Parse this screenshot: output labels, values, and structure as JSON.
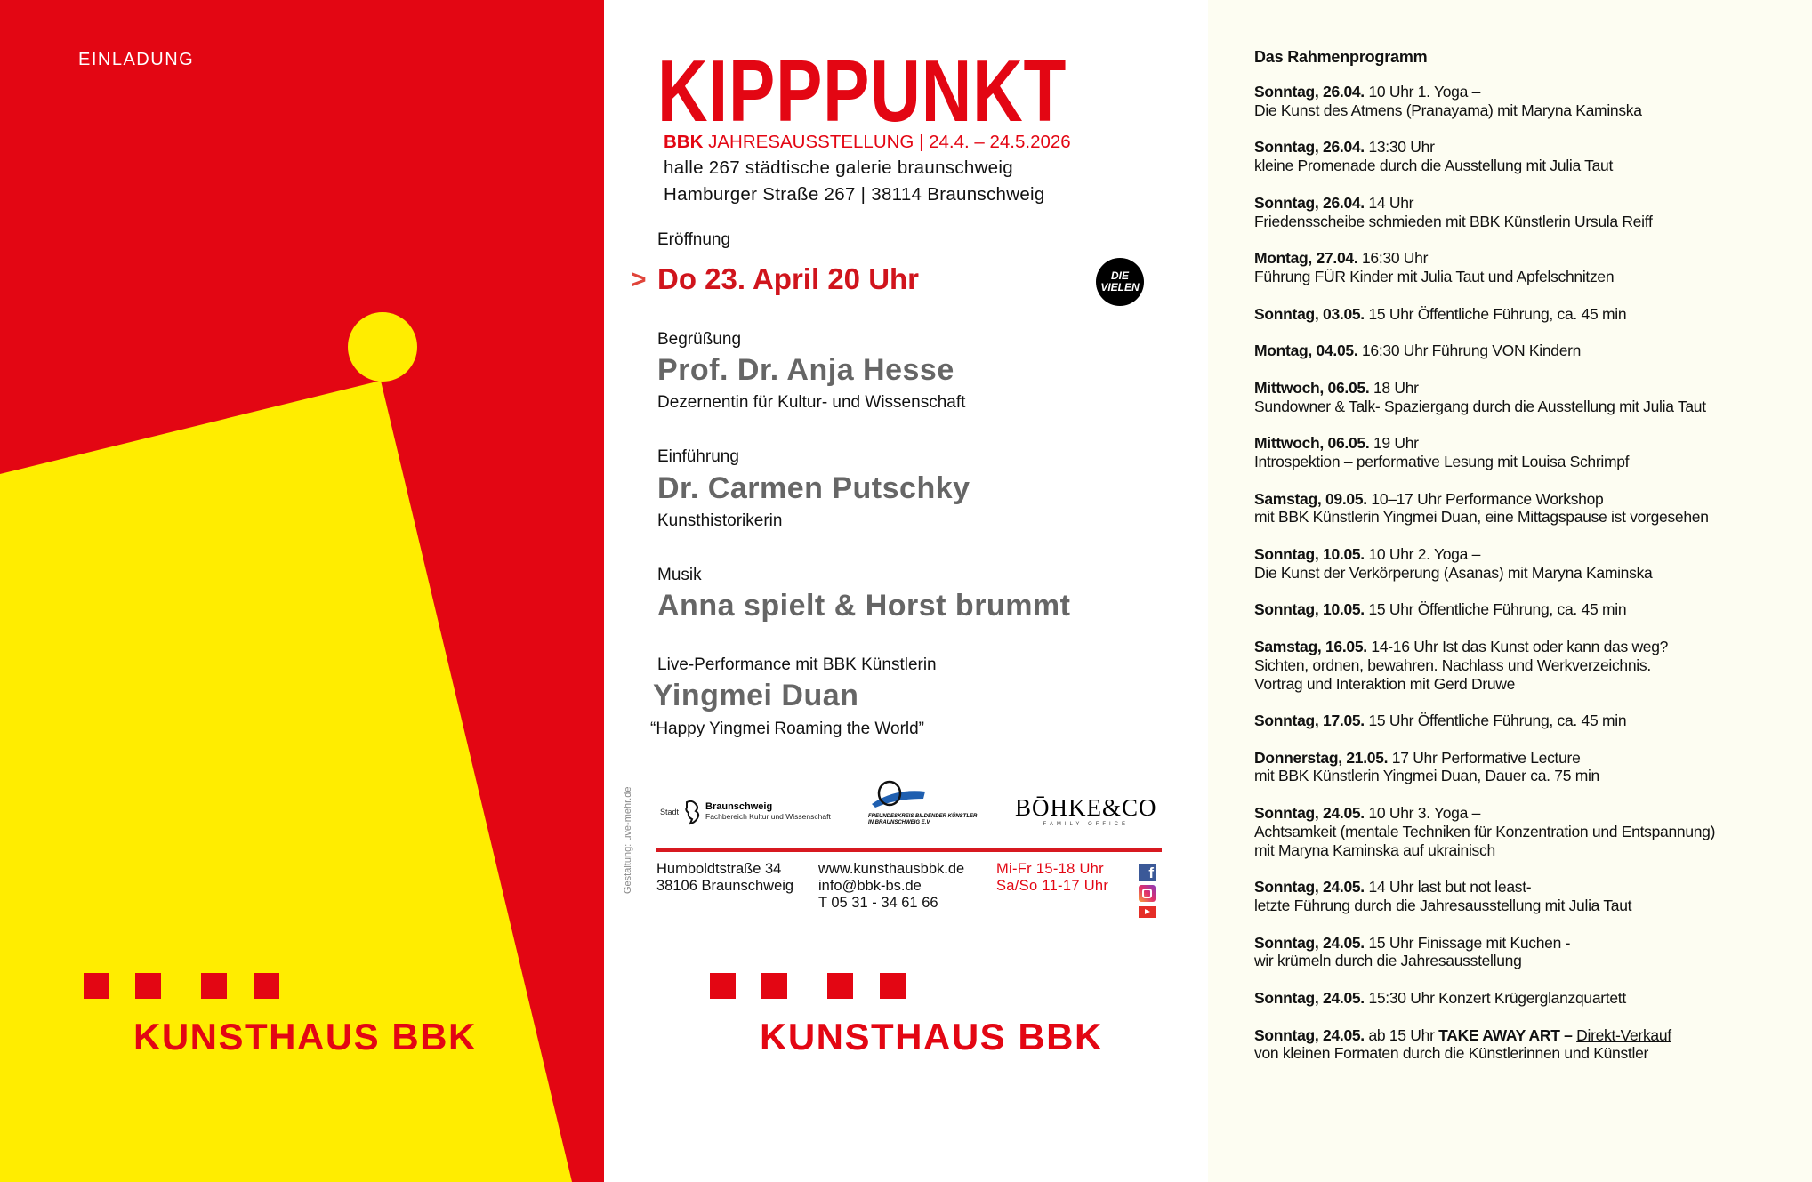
{
  "colors": {
    "red": "#e30613",
    "yellow": "#ffed00",
    "cream": "#fdfdf2",
    "gray": "#666666"
  },
  "left": {
    "label": "EINLADUNG",
    "brand": "KUNSTHAUS BBK"
  },
  "title": "KIPPPUNKT",
  "exhibition": {
    "bbk": "BBK",
    "name": "JAHRESAUSSTELLUNG | 24.4. – 24.5.2026",
    "venue": "halle 267 städtische galerie braunschweig",
    "address": "Hamburger Straße 267 | 38114 Braunschweig"
  },
  "opening": {
    "label": "Eröffnung",
    "arrow": ">",
    "date": "Do 23. April 20 Uhr",
    "badge_line1": "DIE",
    "badge_line2": "VIELEN"
  },
  "greeting": {
    "label": "Begrüßung",
    "name": "Prof. Dr. Anja Hesse",
    "role": "Dezernentin für Kultur- und Wissenschaft"
  },
  "intro": {
    "label": "Einführung",
    "name": "Dr. Carmen Putschky",
    "role": "Kunsthistorikerin"
  },
  "music": {
    "label": "Musik",
    "name": "Anna spielt & Horst brummt"
  },
  "performance": {
    "label": "Live-Performance mit BBK Künstlerin",
    "name": "Yingmei Duan",
    "title": "“Happy Yingmei Roaming the World”"
  },
  "credit": "Gestaltung: uve-mehr.de",
  "sponsors": {
    "braunschweig": {
      "prefix": "Stadt",
      "name": "Braunschweig",
      "dept": "Fachbereich Kultur und Wissenschaft"
    },
    "freundeskreis": {
      "line1": "FREUNDESKREIS BILDENDER KÜNSTLER",
      "line2": "IN BRAUNSCHWEIG E.V."
    },
    "boehke": {
      "name": "BŌHKE&CO",
      "sub": "FAMILY OFFICE"
    }
  },
  "contact": {
    "street": "Humboldtstraße 34",
    "city": "38106 Braunschweig",
    "web": "www.kunsthausbbk.de",
    "email": "info@bbk-bs.de",
    "phone": "T 05 31 - 34 61 66",
    "hours1": "Mi-Fr 15-18 Uhr",
    "hours2": "Sa/So 11-17 Uhr"
  },
  "social": [
    "facebook-icon",
    "instagram-icon",
    "youtube-icon"
  ],
  "program": {
    "title": "Das Rahmenprogramm",
    "entries": [
      {
        "date": "Sonntag, 26.04.",
        "first": "10 Uhr 1. Yoga –",
        "lines": [
          "Die Kunst des Atmens (Pranayama) mit Maryna Kaminska"
        ]
      },
      {
        "date": "Sonntag, 26.04.",
        "first": "13:30 Uhr",
        "lines": [
          "kleine Promenade durch die Ausstellung mit Julia Taut"
        ]
      },
      {
        "date": "Sonntag, 26.04.",
        "first": "14 Uhr",
        "lines": [
          "Friedensscheibe schmieden mit BBK Künstlerin Ursula Reiff"
        ]
      },
      {
        "date": "Montag, 27.04.",
        "first": "16:30 Uhr",
        "lines": [
          "Führung FÜR Kinder mit Julia Taut und Apfelschnitzen"
        ]
      },
      {
        "date": "Sonntag, 03.05.",
        "first": "15 Uhr Öffentliche Führung, ca. 45 min",
        "lines": []
      },
      {
        "date": "Montag, 04.05.",
        "first": "16:30 Uhr Führung VON Kindern",
        "lines": []
      },
      {
        "date": "Mittwoch, 06.05.",
        "first": "18 Uhr",
        "lines": [
          "Sundowner & Talk- Spaziergang durch die Ausstellung mit Julia Taut"
        ]
      },
      {
        "date": "Mittwoch, 06.05.",
        "first": "19 Uhr",
        "lines": [
          "Introspektion – performative Lesung mit Louisa Schrimpf"
        ]
      },
      {
        "date": "Samstag, 09.05.",
        "first": "10–17 Uhr Performance Workshop",
        "lines": [
          "mit BBK Künstlerin Yingmei Duan, eine Mittagspause ist vorgesehen"
        ]
      },
      {
        "date": "Sonntag, 10.05.",
        "first": "10 Uhr 2. Yoga –",
        "lines": [
          "Die Kunst der Verkörperung (Asanas) mit Maryna Kaminska"
        ]
      },
      {
        "date": "Sonntag, 10.05.",
        "first": "15 Uhr Öffentliche Führung, ca. 45 min",
        "lines": []
      },
      {
        "date": "Samstag, 16.05.",
        "first": "14-16 Uhr Ist das Kunst oder kann das weg?",
        "lines": [
          "Sichten, ordnen, bewahren. Nachlass und Werkverzeichnis.",
          "Vortrag und Interaktion mit Gerd Druwe"
        ]
      },
      {
        "date": "Sonntag, 17.05.",
        "first": "15 Uhr Öffentliche Führung, ca. 45 min",
        "lines": []
      },
      {
        "date": "Donnerstag, 21.05.",
        "first": "17 Uhr Performative Lecture",
        "lines": [
          "mit BBK Künstlerin Yingmei Duan, Dauer ca. 75 min"
        ]
      },
      {
        "date": "Sonntag, 24.05.",
        "first": "10 Uhr 3. Yoga –",
        "lines": [
          "Achtsamkeit (mentale Techniken für Konzentration und Entspannung)",
          "mit Maryna Kaminska auf ukrainisch"
        ]
      },
      {
        "date": "Sonntag, 24.05.",
        "first": "14 Uhr last but not least-",
        "lines": [
          "letzte Führung durch die Jahresausstellung mit Julia Taut"
        ]
      },
      {
        "date": "Sonntag, 24.05.",
        "first": "15 Uhr Finissage mit Kuchen -",
        "lines": [
          "wir krümeln durch die Jahresausstellung"
        ]
      },
      {
        "date": "Sonntag, 24.05.",
        "first": "15:30 Uhr Konzert Krügerglanzquartett",
        "lines": []
      },
      {
        "date": "Sonntag, 24.05.",
        "first": "ab 15 Uhr",
        "first_bold": "TAKE AWAY ART –",
        "first_link": "Direkt-Verkauf",
        "lines": [
          "von kleinen Formaten durch die Künstlerinnen und Künstler"
        ]
      }
    ]
  }
}
